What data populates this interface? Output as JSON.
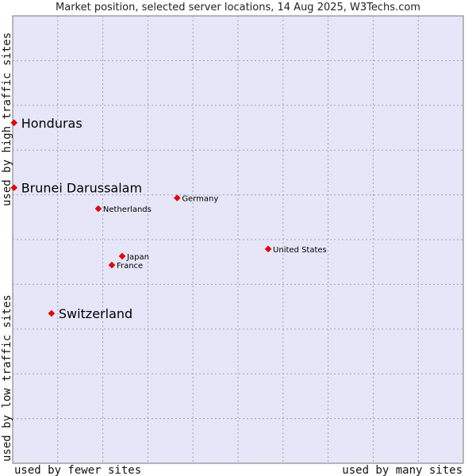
{
  "chart_data": {
    "type": "scatter",
    "title": "Market position, selected server locations, 14 Aug 2025, W3Techs.com",
    "xlabel_left": "used by fewer sites",
    "xlabel_right": "used by many sites",
    "ylabel_top": "used by high traffic sites",
    "ylabel_bottom": "used by low traffic sites",
    "xlim": [
      0,
      100
    ],
    "ylim": [
      0,
      100
    ],
    "grid": true,
    "plot_background": "#e6e6f8",
    "point_color": "#ee0000",
    "points": [
      {
        "label": "Honduras",
        "x": 0.3,
        "y": 76.1,
        "highlight": true
      },
      {
        "label": "Brunei Darussalam",
        "x": 0.3,
        "y": 61.6,
        "highlight": true
      },
      {
        "label": "Switzerland",
        "x": 8.6,
        "y": 33.5,
        "highlight": true
      },
      {
        "label": "Germany",
        "x": 36.5,
        "y": 59.3,
        "highlight": false
      },
      {
        "label": "Netherlands",
        "x": 19.0,
        "y": 56.9,
        "highlight": false
      },
      {
        "label": "United States",
        "x": 56.7,
        "y": 47.9,
        "highlight": false
      },
      {
        "label": "Japan",
        "x": 24.3,
        "y": 46.3,
        "highlight": false
      },
      {
        "label": "France",
        "x": 22.0,
        "y": 44.3,
        "highlight": false
      }
    ]
  }
}
